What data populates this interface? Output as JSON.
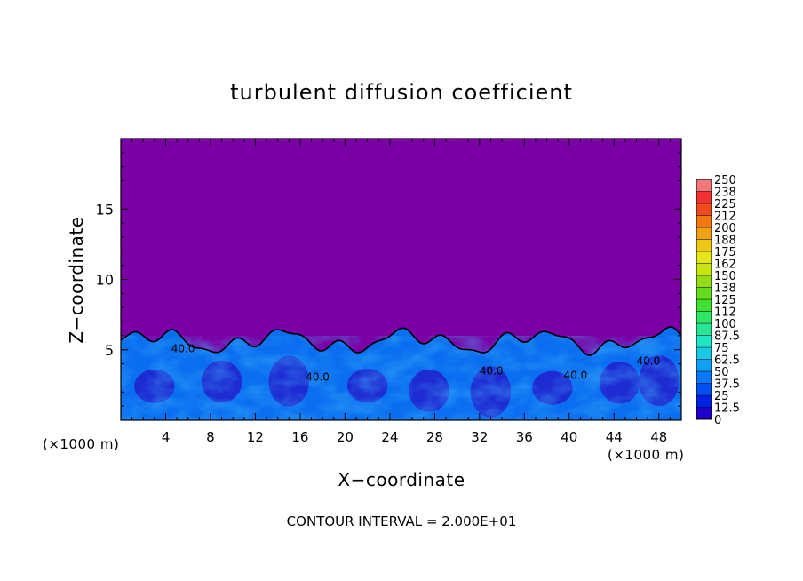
{
  "chart_data": {
    "type": "heatmap",
    "title": "turbulent diffusion coefficient",
    "xlabel": "X−coordinate",
    "ylabel": "Z−coordinate",
    "x_unit_left": "(×1000 m)",
    "x_unit_right": "(×1000 m)",
    "xlim": [
      0,
      50
    ],
    "ylim": [
      0,
      20
    ],
    "x_ticks": [
      4,
      8,
      12,
      16,
      20,
      24,
      28,
      32,
      36,
      40,
      44,
      48
    ],
    "x_tick_labels": [
      "4",
      "8",
      "12",
      "16",
      "20",
      "24",
      "28",
      "32",
      "36",
      "40",
      "44",
      "48"
    ],
    "y_ticks": [
      5,
      10,
      15
    ],
    "y_tick_labels": [
      "5",
      "10",
      "15"
    ],
    "footer": "CONTOUR INTERVAL = 2.000E+01",
    "contour_labels": [
      "40.0",
      "40.0",
      "40.0",
      "40.0",
      "40.0"
    ],
    "colorbar": {
      "labels": [
        "0",
        "12.5",
        "25",
        "37.5",
        "50",
        "62.5",
        "75",
        "87.5",
        "100",
        "112",
        "125",
        "138",
        "150",
        "162",
        "175",
        "188",
        "200",
        "212",
        "225",
        "238",
        "250"
      ],
      "colors": [
        "#7a00a6",
        "#1e00c8",
        "#0020e6",
        "#0050f0",
        "#0a78f5",
        "#10a0f5",
        "#18c8e6",
        "#20e6c8",
        "#28e696",
        "#30e664",
        "#40e032",
        "#64dc1e",
        "#96dc14",
        "#c8e614",
        "#e6e614",
        "#f0c814",
        "#f0a014",
        "#f07814",
        "#f04b1e",
        "#f03232",
        "#f07878"
      ]
    },
    "background_value": 0,
    "boundary_layer_top_km": 6,
    "boundary_layer_value_range": [
      25,
      87.5
    ]
  }
}
